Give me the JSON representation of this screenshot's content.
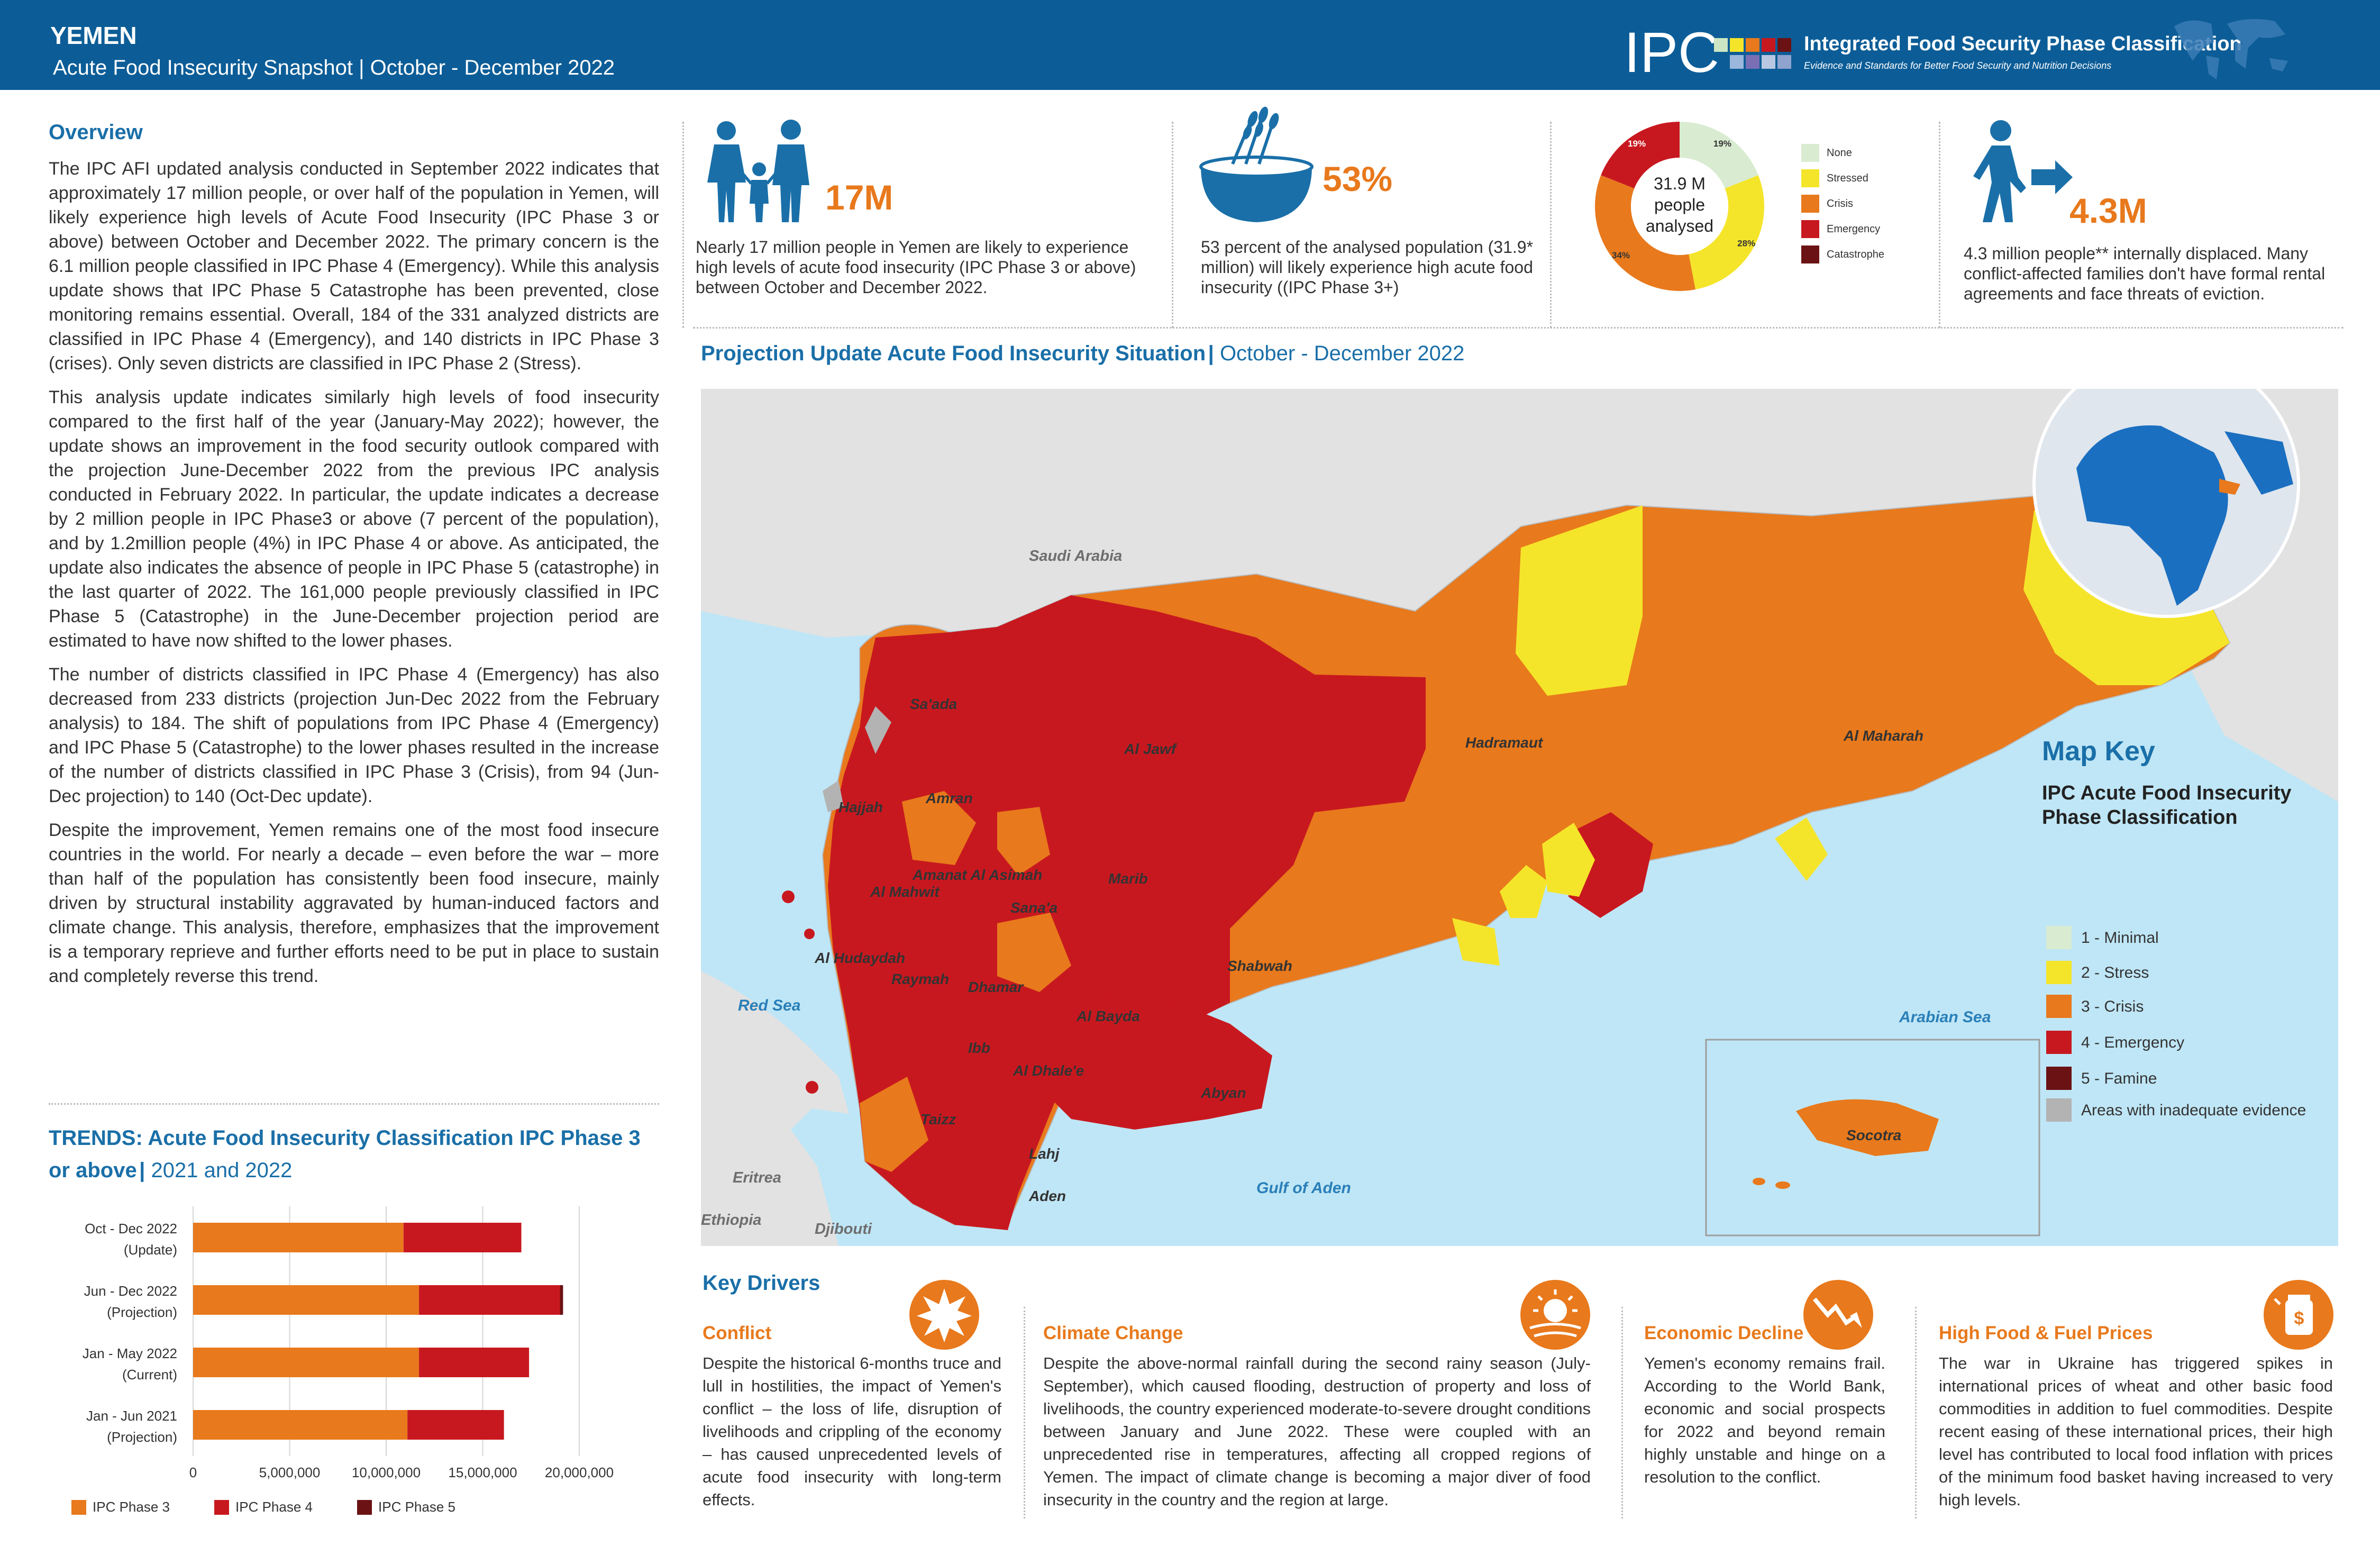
{
  "header": {
    "country": "YEMEN",
    "subtitle": "Acute Food Insecurity Snapshot | October - December 2022",
    "logo_text": "IPC",
    "org_name": "Integrated Food Security Phase Classification",
    "org_tagline": "Evidence and Standards for Better Food Security and Nutrition Decisions"
  },
  "overview": {
    "title": "Overview",
    "paragraphs": [
      "The IPC AFI updated analysis conducted in September 2022 indicates that approximately 17 million people, or over half of the population in Yemen, will likely experience high levels of Acute Food Insecurity (IPC Phase 3 or above) between October and December 2022. The primary concern is the 6.1 million people classified in IPC Phase 4 (Emergency). While this analysis update shows that IPC Phase 5 Catastrophe has been prevented, close monitoring remains essential. Overall, 184 of the 331 analyzed districts are classified in IPC Phase 4 (Emergency), and 140 districts in IPC Phase 3 (crises). Only seven districts are classified in IPC Phase 2 (Stress).",
      "This analysis update indicates similarly high levels of food insecurity compared to the first half of the year (January-May 2022); however, the update shows an improvement in the food security outlook compared with the projection June-December 2022 from the previous IPC analysis conducted in February 2022. In particular, the update indicates a decrease by 2 million people in IPC Phase3 or above (7 percent of the population), and by 1.2million people (4%) in IPC Phase 4 or above. As anticipated, the update also indicates the absence of people in IPC Phase 5 (catastrophe) in the last quarter of 2022. The 161,000 people previously classified in IPC Phase 5 (Catastrophe) in the June-December projection period are estimated to have now shifted to the lower phases.",
      "The number of districts classified in IPC Phase 4 (Emergency) has also decreased from 233 districts (projection Jun-Dec 2022 from the February analysis) to 184. The shift of populations from IPC Phase 4 (Emergency) and IPC Phase 5 (Catastrophe) to the lower phases resulted in the increase of the number of districts classified in IPC Phase 3 (Crisis), from 94 (Jun-Dec projection) to 140 (Oct-Dec update).",
      "Despite the improvement, Yemen remains one of the most food insecure countries in the world. For nearly a decade – even before the war – more than half of the population has consistently been food insecure, mainly driven by structural instability aggravated by human-induced factors and climate change. This analysis, therefore, emphasizes that the improvement is a temporary reprieve and further efforts need to be put in place to sustain and completely reverse this trend."
    ]
  },
  "trends": {
    "title": "TRENDS: Acute Food Insecurity Classification IPC Phase 3 or above",
    "period": "2021 and 2022"
  },
  "chart_data": {
    "type": "bar",
    "orientation": "horizontal",
    "stacked": true,
    "categories": [
      [
        "Oct - Dec 2022",
        "(Update)"
      ],
      [
        "Jun - Dec 2022",
        "(Projection)"
      ],
      [
        "Jan - May 2022",
        "(Current)"
      ],
      [
        "Jan - Jun 2021",
        "(Projection)"
      ]
    ],
    "series": [
      {
        "name": "IPC Phase 3",
        "color": "#e8791c",
        "values": [
          10900000,
          11700000,
          11700000,
          11100000
        ]
      },
      {
        "name": "IPC Phase 4",
        "color": "#c8181f",
        "values": [
          6100000,
          7300000,
          5700000,
          5000000
        ]
      },
      {
        "name": "IPC Phase 5",
        "color": "#6b1214",
        "values": [
          0,
          161000,
          0,
          0
        ]
      }
    ],
    "xlim": [
      0,
      20000000
    ],
    "xticks": [
      "0",
      "5,000,000",
      "10,000,000",
      "15,000,000",
      "20,000,000"
    ],
    "grid": true,
    "legend_position": "bottom"
  },
  "stats": [
    {
      "value": "17M",
      "text": "Nearly 17 million people in Yemen are likely to experience high levels of acute food insecurity (IPC Phase 3 or above) between October and December 2022."
    },
    {
      "value": "53%",
      "text": "53 percent of the analysed population (31.9* million) will likely experience high acute food insecurity ((IPC Phase 3+)"
    },
    {
      "value": "4.3M",
      "text": "4.3 million people** internally displaced. Many conflict-affected families don't have formal rental agreements and face threats of eviction."
    }
  ],
  "donut": {
    "center_lines": [
      "31.9 M",
      "people",
      "analysed"
    ],
    "slices": [
      {
        "label": "None",
        "pct": 19,
        "pct_label": "19%",
        "color": "#d9ecd1"
      },
      {
        "label": "Stressed",
        "pct": 28,
        "pct_label": "28%",
        "color": "#f5e52a"
      },
      {
        "label": "Crisis",
        "pct": 34,
        "pct_label": "34%",
        "color": "#e8791c"
      },
      {
        "label": "Emergency",
        "pct": 19,
        "pct_label": "19%",
        "color": "#c8181f"
      },
      {
        "label": "Catastrophe",
        "pct": 0,
        "pct_label": "",
        "color": "#6b1214"
      }
    ]
  },
  "map": {
    "title": "Projection Update Acute Food Insecurity Situation",
    "period": "October - December 2022",
    "countries": [
      "Saudi Arabia",
      "Eritrea",
      "Ethiopia",
      "Djibouti"
    ],
    "seas": [
      "Red Sea",
      "Arabian Sea",
      "Gulf of Aden"
    ],
    "regions": [
      "Sa'ada",
      "Al Jawf",
      "Hadramaut",
      "Al Maharah",
      "Hajjah",
      "Amran",
      "Amanat Al Asimah",
      "Al Mahwit",
      "Marib",
      "Sana'a",
      "Al Hudaydah",
      "Raymah",
      "Dhamar",
      "Al Bayda",
      "Shabwah",
      "Ibb",
      "Al Dhale'e",
      "Abyan",
      "Taizz",
      "Lahj",
      "Aden",
      "Socotra"
    ]
  },
  "map_key": {
    "title": "Map Key",
    "subtitle_lines": [
      "IPC Acute Food Insecurity",
      "Phase Classification"
    ],
    "items": [
      {
        "label": "1 - Minimal",
        "color": "#d9ecd1"
      },
      {
        "label": "2 - Stress",
        "color": "#f5e52a"
      },
      {
        "label": "3 - Crisis",
        "color": "#e8791c"
      },
      {
        "label": "4 - Emergency",
        "color": "#c8181f"
      },
      {
        "label": "5 - Famine",
        "color": "#6b1214"
      },
      {
        "label": "Areas with inadequate evidence",
        "color": "#b3b3b3"
      }
    ]
  },
  "key_drivers": {
    "title": "Key Drivers",
    "items": [
      {
        "heading": "Conflict",
        "text": "Despite the historical 6-months truce and lull in hostilities, the impact of Yemen's conflict – the loss of life, disruption of livelihoods and crippling of the economy – has caused unprecedented levels of acute food insecurity with long-term effects."
      },
      {
        "heading": "Climate Change",
        "text": "Despite the above-normal rainfall during the second rainy season (July-September), which caused flooding, destruction of property and loss of livelihoods, the country experienced moderate-to-severe drought conditions between January and June 2022. These were coupled with an unprecedented rise in temperatures, affecting all cropped regions of Yemen. The impact of climate change is becoming a major diver of food insecurity in the country and the region at large."
      },
      {
        "heading": "Economic Decline",
        "text": "Yemen's economy remains frail. According to the World Bank, economic and social prospects for 2022 and beyond remain highly unstable and hinge on a resolution to the conflict."
      },
      {
        "heading": "High Food & Fuel Prices",
        "text": "The war in Ukraine has triggered spikes in international prices of wheat and other basic food commodities in addition to fuel commodities. Despite recent easing of these international prices, their high level has contributed to local food inflation with prices of the minimum food basket having increased to very high levels."
      }
    ]
  }
}
